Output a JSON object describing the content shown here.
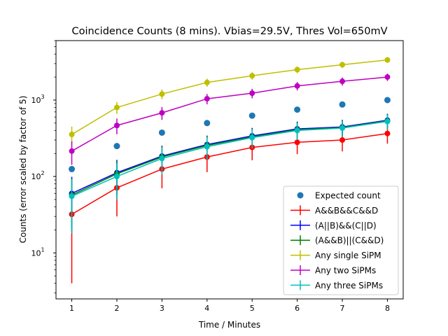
{
  "chart_data": {
    "type": "line",
    "title": "Coincidence Counts (8 mins). Vbias=29.5V, Thres Vol=650mV",
    "xlabel": "Time / Minutes",
    "ylabel": "Counts (error scaled by factor of 5)",
    "x": [
      1,
      2,
      3,
      4,
      5,
      6,
      7,
      8
    ],
    "xticks": [
      "1",
      "2",
      "3",
      "4",
      "5",
      "6",
      "7",
      "8"
    ],
    "xlim": [
      0.65,
      8.35
    ],
    "ylim": [
      2.5,
      6000
    ],
    "yscale": "log",
    "yticks": [
      {
        "base": "10",
        "exp": "1",
        "value": 10
      },
      {
        "base": "10",
        "exp": "2",
        "value": 100
      },
      {
        "base": "10",
        "exp": "3",
        "value": 1000
      }
    ],
    "legend_position": "lower right",
    "grid": false,
    "expected": {
      "name": "Expected count",
      "color": "#1f77b4",
      "values": [
        125,
        250,
        375,
        500,
        625,
        750,
        875,
        1000
      ]
    },
    "series": [
      {
        "name": "A&&B&&C&&D",
        "color": "#ff0000",
        "values": [
          32,
          71,
          125,
          180,
          240,
          280,
          300,
          365
        ],
        "err": [
          28,
          41,
          55,
          66,
          77,
          84,
          87,
          96
        ]
      },
      {
        "name": "(A||B)&&(C||D)",
        "color": "#0000ff",
        "values": [
          60,
          112,
          185,
          262,
          340,
          420,
          445,
          545
        ],
        "err": [
          39,
          53,
          68,
          81,
          92,
          103,
          106,
          117
        ]
      },
      {
        "name": "(A&&B)||(C&&D)",
        "color": "#008000",
        "values": [
          57,
          108,
          180,
          255,
          330,
          410,
          437,
          535
        ],
        "err": [
          38,
          52,
          67,
          80,
          91,
          101,
          105,
          116
        ]
      },
      {
        "name": "Any single SiPM",
        "color": "#bfbf00",
        "values": [
          355,
          800,
          1200,
          1700,
          2080,
          2500,
          2900,
          3350
        ],
        "err": [
          94,
          141,
          173,
          206,
          228,
          250,
          269,
          289
        ]
      },
      {
        "name": "Any two SiPMs",
        "color": "#bf00bf",
        "values": [
          215,
          465,
          680,
          1040,
          1230,
          1530,
          1760,
          2000
        ],
        "err": [
          73,
          108,
          130,
          161,
          175,
          196,
          210,
          224
        ]
      },
      {
        "name": "Any three SiPMs",
        "color": "#00bfbf",
        "values": [
          55,
          100,
          172,
          245,
          322,
          400,
          430,
          525
        ],
        "err": [
          37,
          50,
          66,
          78,
          90,
          100,
          104,
          115
        ]
      }
    ]
  }
}
